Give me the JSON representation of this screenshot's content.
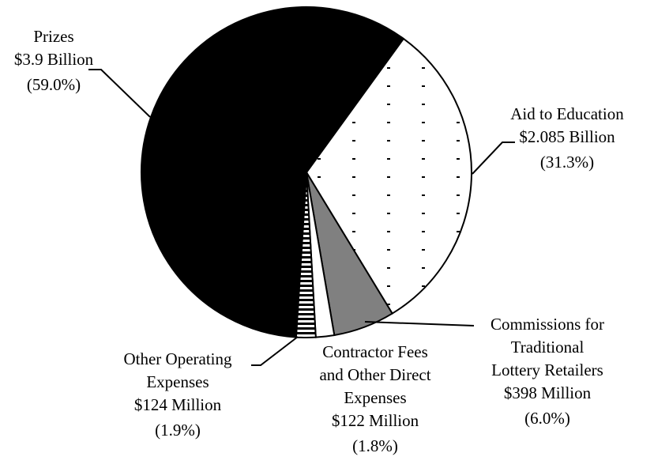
{
  "chart_data": {
    "type": "pie",
    "categories": [
      [
        "Aid to Education"
      ],
      [
        "Commissions for",
        "Traditional",
        "Lottery Retailers"
      ],
      [
        "Contractor Fees",
        "and Other Direct",
        "Expenses"
      ],
      [
        "Other Operating",
        "Expenses"
      ],
      [
        "Prizes"
      ]
    ],
    "amounts": [
      "$2.085 Billion",
      "$398 Million",
      "$122 Million",
      "$124 Million",
      "$3.9 Billion"
    ],
    "values": [
      31.3,
      6.0,
      1.8,
      1.9,
      59.0
    ],
    "value_labels": [
      "(31.3%)",
      "(6.0%)",
      "(1.8%)",
      "(1.9%)",
      "(59.0%)"
    ],
    "colors": [
      "#ffffff",
      "#808080",
      "#ffffff",
      "#ffffff",
      "#000000"
    ],
    "patterns": [
      "dots",
      null,
      null,
      "stripes",
      null
    ]
  }
}
